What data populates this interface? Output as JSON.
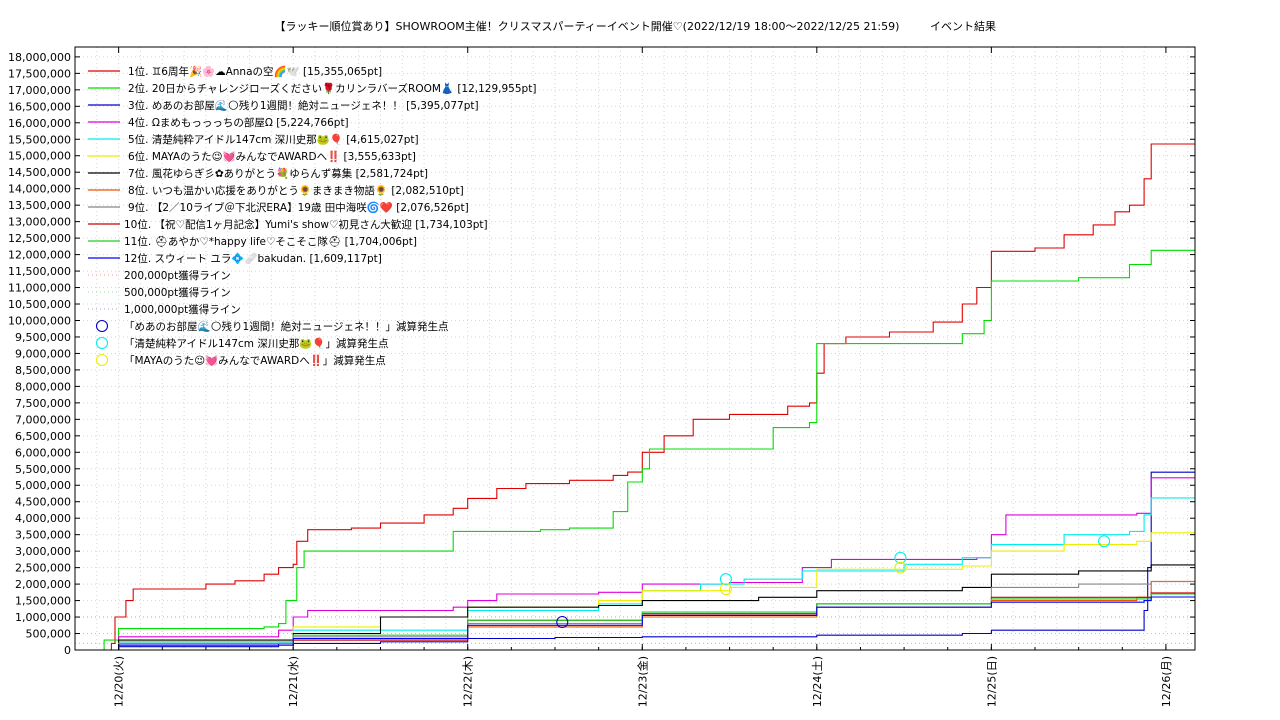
{
  "chart_data": {
    "type": "line",
    "title": "【ラッキー順位賞あり】SHOWROOM主催！クリスマスパーティーイベント開催♡(2022/12/19 18:00～2022/12/25 21:59)",
    "title_suffix": "イベント結果",
    "x_range": [
      "2022-12-19T18:00",
      "2022-12-26T04:00"
    ],
    "x_ticks": [
      "12/20(火)",
      "12/21(水)",
      "12/22(木)",
      "12/23(金)",
      "12/24(土)",
      "12/25(日)",
      "12/26(月)"
    ],
    "x_tick_dates": [
      "2022-12-20T00:00",
      "2022-12-21T00:00",
      "2022-12-22T00:00",
      "2022-12-23T00:00",
      "2022-12-24T00:00",
      "2022-12-25T00:00",
      "2022-12-26T00:00"
    ],
    "y_range": [
      0,
      18300000
    ],
    "y_ticks": [
      0,
      500000,
      1000000,
      1500000,
      2000000,
      2500000,
      3000000,
      3500000,
      4000000,
      4500000,
      5000000,
      5500000,
      6000000,
      6500000,
      7000000,
      7500000,
      8000000,
      8500000,
      9000000,
      9500000,
      10000000,
      10500000,
      11000000,
      11500000,
      12000000,
      12500000,
      13000000,
      13500000,
      14000000,
      14500000,
      15000000,
      15500000,
      16000000,
      16500000,
      17000000,
      17500000,
      18000000
    ],
    "grid": true,
    "legend_position": "top-left",
    "series": [
      {
        "name": "1位. ♊6周年🎉🌸☁Annaの空🌈🕊️ [15,355,065pt]",
        "color": "#e00000",
        "points": [
          [
            "2022-12-19T18:00",
            0
          ],
          [
            "2022-12-19T23:00",
            200000
          ],
          [
            "2022-12-19T23:30",
            1000000
          ],
          [
            "2022-12-20T01:00",
            1500000
          ],
          [
            "2022-12-20T02:00",
            1850000
          ],
          [
            "2022-12-20T10:00",
            1850000
          ],
          [
            "2022-12-20T12:00",
            2000000
          ],
          [
            "2022-12-20T16:00",
            2100000
          ],
          [
            "2022-12-20T20:00",
            2300000
          ],
          [
            "2022-12-20T22:00",
            2500000
          ],
          [
            "2022-12-21T00:00",
            2600000
          ],
          [
            "2022-12-21T00:30",
            3300000
          ],
          [
            "2022-12-21T02:00",
            3650000
          ],
          [
            "2022-12-21T08:00",
            3700000
          ],
          [
            "2022-12-21T12:00",
            3850000
          ],
          [
            "2022-12-21T18:00",
            4100000
          ],
          [
            "2022-12-21T22:00",
            4300000
          ],
          [
            "2022-12-22T00:00",
            4600000
          ],
          [
            "2022-12-22T04:00",
            4900000
          ],
          [
            "2022-12-22T08:00",
            5050000
          ],
          [
            "2022-12-22T14:00",
            5150000
          ],
          [
            "2022-12-22T20:00",
            5300000
          ],
          [
            "2022-12-22T22:00",
            5400000
          ],
          [
            "2022-12-23T00:00",
            6000000
          ],
          [
            "2022-12-23T03:00",
            6500000
          ],
          [
            "2022-12-23T07:00",
            7000000
          ],
          [
            "2022-12-23T12:00",
            7150000
          ],
          [
            "2022-12-23T20:00",
            7400000
          ],
          [
            "2022-12-23T23:00",
            7500000
          ],
          [
            "2022-12-24T00:00",
            8400000
          ],
          [
            "2022-12-24T01:00",
            9300000
          ],
          [
            "2022-12-24T04:00",
            9500000
          ],
          [
            "2022-12-24T10:00",
            9650000
          ],
          [
            "2022-12-24T16:00",
            9950000
          ],
          [
            "2022-12-24T20:00",
            10500000
          ],
          [
            "2022-12-24T22:00",
            11000000
          ],
          [
            "2022-12-25T00:00",
            12100000
          ],
          [
            "2022-12-25T06:00",
            12200000
          ],
          [
            "2022-12-25T10:00",
            12600000
          ],
          [
            "2022-12-25T14:00",
            12900000
          ],
          [
            "2022-12-25T17:00",
            13300000
          ],
          [
            "2022-12-25T19:00",
            13500000
          ],
          [
            "2022-12-25T21:00",
            14300000
          ],
          [
            "2022-12-25T21:59",
            15355065
          ],
          [
            "2022-12-26T04:00",
            15355065
          ]
        ]
      },
      {
        "name": "2位. 20日からチャレンジローズください🌹カリンラバーズROOM👗 [12,129,955pt]",
        "color": "#00dd00",
        "points": [
          [
            "2022-12-19T18:00",
            0
          ],
          [
            "2022-12-19T22:00",
            300000
          ],
          [
            "2022-12-20T00:00",
            650000
          ],
          [
            "2022-12-20T18:00",
            650000
          ],
          [
            "2022-12-20T20:00",
            700000
          ],
          [
            "2022-12-20T22:00",
            800000
          ],
          [
            "2022-12-20T23:00",
            1500000
          ],
          [
            "2022-12-21T00:30",
            2500000
          ],
          [
            "2022-12-21T01:30",
            3000000
          ],
          [
            "2022-12-21T20:00",
            3000000
          ],
          [
            "2022-12-21T22:00",
            3600000
          ],
          [
            "2022-12-22T10:00",
            3650000
          ],
          [
            "2022-12-22T14:00",
            3700000
          ],
          [
            "2022-12-22T20:00",
            4200000
          ],
          [
            "2022-12-22T22:00",
            5100000
          ],
          [
            "2022-12-23T00:00",
            5500000
          ],
          [
            "2022-12-23T01:00",
            6100000
          ],
          [
            "2022-12-23T16:00",
            6100000
          ],
          [
            "2022-12-23T18:00",
            6750000
          ],
          [
            "2022-12-23T23:00",
            6900000
          ],
          [
            "2022-12-24T00:00",
            9300000
          ],
          [
            "2022-12-24T20:00",
            9600000
          ],
          [
            "2022-12-24T23:00",
            10000000
          ],
          [
            "2022-12-25T00:00",
            11200000
          ],
          [
            "2022-12-25T12:00",
            11300000
          ],
          [
            "2022-12-25T19:00",
            11700000
          ],
          [
            "2022-12-25T21:59",
            12129955
          ],
          [
            "2022-12-26T04:00",
            12129955
          ]
        ]
      },
      {
        "name": "3位. めあのお部屋🌊🌕残り1週間！絶対ニュージェネ！！ [5,395,077pt]",
        "color": "#0000cc",
        "points": [
          [
            "2022-12-19T18:00",
            0
          ],
          [
            "2022-12-20T00:00",
            100000
          ],
          [
            "2022-12-20T22:00",
            200000
          ],
          [
            "2022-12-21T12:00",
            250000
          ],
          [
            "2022-12-22T00:00",
            350000
          ],
          [
            "2022-12-22T12:00",
            380000
          ],
          [
            "2022-12-23T00:00",
            400000
          ],
          [
            "2022-12-24T00:00",
            450000
          ],
          [
            "2022-12-24T20:00",
            500000
          ],
          [
            "2022-12-25T00:00",
            600000
          ],
          [
            "2022-12-25T20:00",
            600000
          ],
          [
            "2022-12-25T21:00",
            1200000
          ],
          [
            "2022-12-25T21:30",
            2500000
          ],
          [
            "2022-12-25T21:59",
            5395077
          ],
          [
            "2022-12-26T04:00",
            5395077
          ]
        ]
      },
      {
        "name": "4位. Ωまめもっっっちの部屋Ω [5,224,766pt]",
        "color": "#dd00dd",
        "points": [
          [
            "2022-12-19T18:00",
            0
          ],
          [
            "2022-12-20T00:00",
            400000
          ],
          [
            "2022-12-20T22:00",
            600000
          ],
          [
            "2022-12-21T00:00",
            1000000
          ],
          [
            "2022-12-21T02:00",
            1200000
          ],
          [
            "2022-12-21T22:00",
            1300000
          ],
          [
            "2022-12-22T00:00",
            1500000
          ],
          [
            "2022-12-22T04:00",
            1700000
          ],
          [
            "2022-12-22T18:00",
            1750000
          ],
          [
            "2022-12-23T00:00",
            2000000
          ],
          [
            "2022-12-23T12:00",
            2050000
          ],
          [
            "2022-12-23T22:00",
            2500000
          ],
          [
            "2022-12-24T02:00",
            2750000
          ],
          [
            "2022-12-24T22:00",
            2800000
          ],
          [
            "2022-12-25T00:00",
            3500000
          ],
          [
            "2022-12-25T02:00",
            4100000
          ],
          [
            "2022-12-25T20:00",
            4150000
          ],
          [
            "2022-12-25T21:59",
            5224766
          ],
          [
            "2022-12-26T04:00",
            5224766
          ]
        ]
      },
      {
        "name": "5位. 清楚純粋アイドル147cm 深川史那🐸🎈 [4,615,027pt]",
        "color": "#00eeee",
        "points": [
          [
            "2022-12-19T18:00",
            0
          ],
          [
            "2022-12-20T00:00",
            250000
          ],
          [
            "2022-12-21T00:00",
            600000
          ],
          [
            "2022-12-22T00:00",
            1200000
          ],
          [
            "2022-12-22T18:00",
            1400000
          ],
          [
            "2022-12-23T00:00",
            1800000
          ],
          [
            "2022-12-23T08:00",
            2000000
          ],
          [
            "2022-12-23T14:00",
            2150000
          ],
          [
            "2022-12-23T22:00",
            2400000
          ],
          [
            "2022-12-24T12:00",
            2600000
          ],
          [
            "2022-12-24T20:00",
            2800000
          ],
          [
            "2022-12-25T00:00",
            3200000
          ],
          [
            "2022-12-25T10:00",
            3500000
          ],
          [
            "2022-12-25T19:00",
            3600000
          ],
          [
            "2022-12-25T21:00",
            4100000
          ],
          [
            "2022-12-25T21:59",
            4615027
          ],
          [
            "2022-12-26T04:00",
            4615027
          ]
        ]
      },
      {
        "name": "6位. MAYAのうた😉💓みんなでAWARDへ‼️ [3,555,633pt]",
        "color": "#eeee00",
        "points": [
          [
            "2022-12-19T18:00",
            0
          ],
          [
            "2022-12-20T00:00",
            300000
          ],
          [
            "2022-12-21T00:00",
            700000
          ],
          [
            "2022-12-21T12:00",
            1000000
          ],
          [
            "2022-12-22T00:00",
            1300000
          ],
          [
            "2022-12-22T18:00",
            1500000
          ],
          [
            "2022-12-23T00:00",
            1800000
          ],
          [
            "2022-12-23T12:00",
            1900000
          ],
          [
            "2022-12-24T00:00",
            2450000
          ],
          [
            "2022-12-24T20:00",
            2550000
          ],
          [
            "2022-12-25T00:00",
            3000000
          ],
          [
            "2022-12-25T10:00",
            3200000
          ],
          [
            "2022-12-25T20:00",
            3300000
          ],
          [
            "2022-12-25T21:59",
            3555633
          ],
          [
            "2022-12-26T04:00",
            3555633
          ]
        ]
      },
      {
        "name": "7位. 風花ゆらぎ彡✿ありがとう💐ゆらんず募集 [2,581,724pt]",
        "color": "#000000",
        "points": [
          [
            "2022-12-19T18:00",
            0
          ],
          [
            "2022-12-20T00:00",
            300000
          ],
          [
            "2022-12-21T00:00",
            500000
          ],
          [
            "2022-12-21T12:00",
            1000000
          ],
          [
            "2022-12-22T00:00",
            1300000
          ],
          [
            "2022-12-22T18:00",
            1350000
          ],
          [
            "2022-12-23T00:00",
            1500000
          ],
          [
            "2022-12-23T16:00",
            1600000
          ],
          [
            "2022-12-24T00:00",
            1800000
          ],
          [
            "2022-12-24T20:00",
            1900000
          ],
          [
            "2022-12-25T00:00",
            2300000
          ],
          [
            "2022-12-25T12:00",
            2400000
          ],
          [
            "2022-12-25T21:59",
            2581724
          ],
          [
            "2022-12-26T04:00",
            2581724
          ]
        ]
      },
      {
        "name": "8位. いつも温かい応援をありがとう🌻まきまき物語🌻 [2,082,510pt]",
        "color": "#ee5500",
        "points": [
          [
            "2022-12-19T18:00",
            0
          ],
          [
            "2022-12-20T00:00",
            150000
          ],
          [
            "2022-12-21T00:00",
            300000
          ],
          [
            "2022-12-22T00:00",
            700000
          ],
          [
            "2022-12-23T00:00",
            1000000
          ],
          [
            "2022-12-24T00:00",
            1300000
          ],
          [
            "2022-12-25T00:00",
            1500000
          ],
          [
            "2022-12-25T20:00",
            1600000
          ],
          [
            "2022-12-25T21:59",
            2082510
          ],
          [
            "2022-12-26T04:00",
            2082510
          ]
        ]
      },
      {
        "name": "9位. 【2／10ライブ＠下北沢ERA】19歳 田中海咲🌀❤️ [2,076,526pt]",
        "color": "#888888",
        "points": [
          [
            "2022-12-19T18:00",
            0
          ],
          [
            "2022-12-20T00:00",
            200000
          ],
          [
            "2022-12-21T00:00",
            400000
          ],
          [
            "2022-12-22T00:00",
            800000
          ],
          [
            "2022-12-23T00:00",
            1100000
          ],
          [
            "2022-12-24T00:00",
            1400000
          ],
          [
            "2022-12-25T00:00",
            1900000
          ],
          [
            "2022-12-25T12:00",
            2000000
          ],
          [
            "2022-12-25T21:59",
            2076526
          ],
          [
            "2022-12-26T04:00",
            2076526
          ]
        ]
      },
      {
        "name": "10位. 【祝♡配信1ヶ月記念】Yumi's show♡初見さん大歓迎 [1,734,103pt]",
        "color": "#cc0000",
        "points": [
          [
            "2022-12-19T18:00",
            0
          ],
          [
            "2022-12-20T00:00",
            150000
          ],
          [
            "2022-12-21T00:00",
            300000
          ],
          [
            "2022-12-22T00:00",
            900000
          ],
          [
            "2022-12-23T00:00",
            1100000
          ],
          [
            "2022-12-24T00:00",
            1400000
          ],
          [
            "2022-12-25T00:00",
            1600000
          ],
          [
            "2022-12-25T21:59",
            1734103
          ],
          [
            "2022-12-26T04:00",
            1734103
          ]
        ]
      },
      {
        "name": "11位. ⛑あやか♡*happy life♡そこそこ隊⛑ [1,704,006pt]",
        "color": "#22cc22",
        "points": [
          [
            "2022-12-19T18:00",
            0
          ],
          [
            "2022-12-20T00:00",
            200000
          ],
          [
            "2022-12-21T00:00",
            450000
          ],
          [
            "2022-12-22T00:00",
            900000
          ],
          [
            "2022-12-23T00:00",
            1150000
          ],
          [
            "2022-12-24T00:00",
            1400000
          ],
          [
            "2022-12-25T00:00",
            1550000
          ],
          [
            "2022-12-25T21:59",
            1704006
          ],
          [
            "2022-12-26T04:00",
            1704006
          ]
        ]
      },
      {
        "name": "12位. スウィート ユラ💠🩹bakudan. [1,609,117pt]",
        "color": "#0000ff",
        "points": [
          [
            "2022-12-19T18:00",
            0
          ],
          [
            "2022-12-20T00:00",
            150000
          ],
          [
            "2022-12-21T00:00",
            350000
          ],
          [
            "2022-12-22T00:00",
            750000
          ],
          [
            "2022-12-23T00:00",
            1050000
          ],
          [
            "2022-12-24T00:00",
            1300000
          ],
          [
            "2022-12-25T00:00",
            1450000
          ],
          [
            "2022-12-25T21:00",
            1500000
          ],
          [
            "2022-12-25T21:59",
            1609117
          ],
          [
            "2022-12-26T04:00",
            1609117
          ]
        ]
      }
    ],
    "reference_lines": [
      {
        "name": "200,000pt獲得ライン",
        "value": 200000,
        "color": "#ff9999"
      },
      {
        "name": "500,000pt獲得ライン",
        "value": 500000,
        "color": "#99dd99"
      },
      {
        "name": "1,000,000pt獲得ライン",
        "value": 1000000,
        "color": "#99aacc"
      }
    ],
    "markers": [
      {
        "name": "「めあのお部屋🌊🌕残り1週間！絶対ニュージェネ！！」減算発生点",
        "color": "#0000cc",
        "points": [
          [
            "2022-12-22T13:00",
            850000
          ]
        ]
      },
      {
        "name": "「清楚純粋アイドル147cm 深川史那🐸🎈」減算発生点",
        "color": "#00eeee",
        "points": [
          [
            "2022-12-23T11:30",
            2150000
          ],
          [
            "2022-12-24T11:30",
            2800000
          ],
          [
            "2022-12-25T15:30",
            3300000
          ]
        ]
      },
      {
        "name": "「MAYAのうた😉💓みんなでAWARDへ‼️」減算発生点",
        "color": "#eeee00",
        "points": [
          [
            "2022-12-23T11:30",
            1850000
          ],
          [
            "2022-12-24T11:30",
            2500000
          ]
        ]
      }
    ]
  }
}
